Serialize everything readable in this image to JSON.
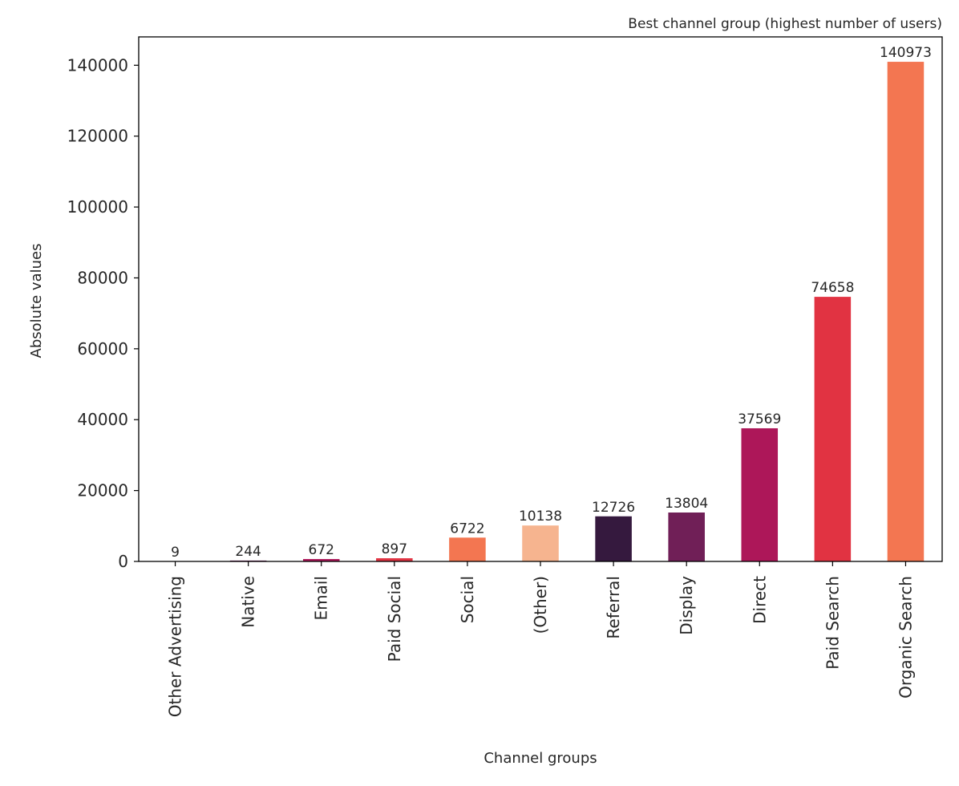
{
  "chart_data": {
    "type": "bar",
    "title": "Best channel group (highest number of users)",
    "title_position": "top-right",
    "xlabel": "Channel groups",
    "ylabel": "Absolute values",
    "categories": [
      "Other Advertising",
      "Native",
      "Email",
      "Paid Social",
      "Social",
      "(Other)",
      "Referral",
      "Display",
      "Direct",
      "Paid Search",
      "Organic Search"
    ],
    "values": [
      9,
      244,
      672,
      897,
      6722,
      10138,
      12726,
      13804,
      37569,
      74658,
      140973
    ],
    "data_labels": [
      "9",
      "244",
      "672",
      "897",
      "6722",
      "10138",
      "12726",
      "13804",
      "37569",
      "74658",
      "140973"
    ],
    "colors": [
      "#e8a37c",
      "#6a1e5a",
      "#ad1759",
      "#e13342",
      "#f37651",
      "#f6b48f",
      "#35193e",
      "#701f57",
      "#ad1759",
      "#e13342",
      "#f37651"
    ],
    "yticks": [
      0,
      20000,
      40000,
      60000,
      80000,
      100000,
      120000,
      140000
    ],
    "ytick_labels": [
      "0",
      "20000",
      "40000",
      "60000",
      "80000",
      "100000",
      "120000",
      "140000"
    ],
    "ylim": [
      0,
      148000
    ],
    "grid": false,
    "legend": "none"
  }
}
